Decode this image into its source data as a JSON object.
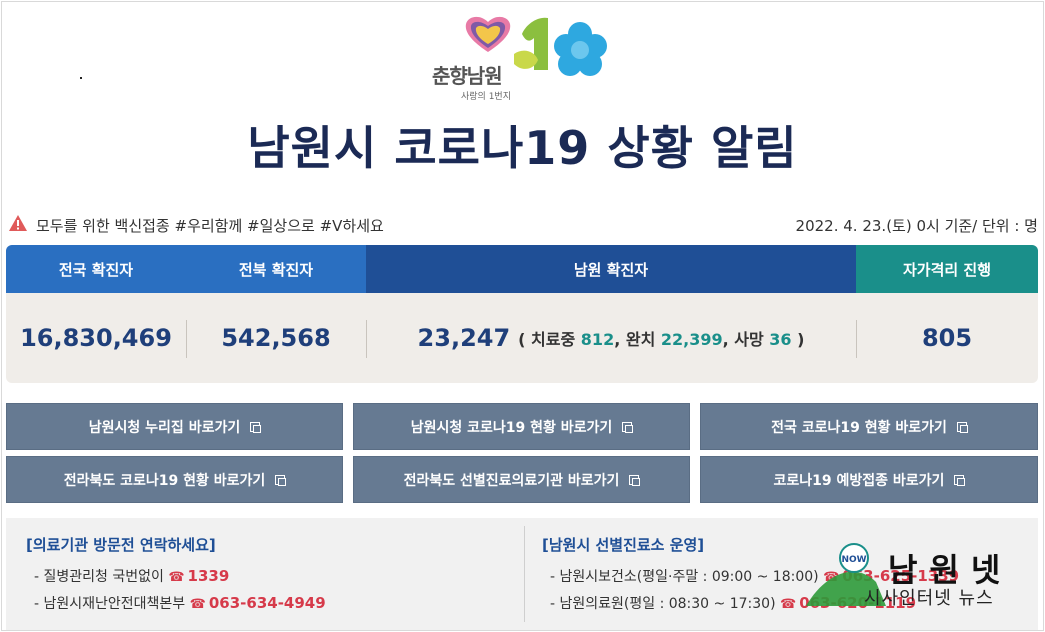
{
  "logo": {
    "text": "춘향남원",
    "subtext": "사랑의 1번지"
  },
  "title": "남원시 코로나19 상황 알림",
  "notice": {
    "icon": "warning-icon",
    "text": "모두를 위한 백신접종 #우리함께 #일상으로 #V하세요",
    "date": "2022. 4. 23.(토) 0시 기준/ 단위 : 명"
  },
  "stats": {
    "headers": [
      "전국 확진자",
      "전북 확진자",
      "남원 확진자",
      "자가격리 진행"
    ],
    "national": "16,830,469",
    "jeonbuk": "542,568",
    "namwon": "23,247",
    "treating_label": "( 치료중",
    "treating": "812",
    "recovered_label": ", 완치",
    "recovered": "22,399",
    "death_label": ", 사망",
    "death": "36",
    "close": " )",
    "quarantine": "805",
    "colors": {
      "header_blue": "#2a6fc1",
      "header_dark": "#1f4f96",
      "header_teal": "#1a8f8a",
      "value": "#1f3f7a"
    }
  },
  "links": [
    "남원시청 누리집 바로가기",
    "남원시청 코로나19 현황 바로가기",
    "전국 코로나19 현황 바로가기",
    "전라북도 코로나19 현황 바로가기",
    "전라북도 선별진료의료기관 바로가기",
    "코로나19 예방접종 바로가기"
  ],
  "info": {
    "left_title": "[의료기관 방문전 연락하세요]",
    "left_lines": [
      {
        "label": "- 질병관리청 국번없이",
        "phone": "1339"
      },
      {
        "label": "- 남원시재난안전대책본부",
        "phone": "063-634-4949"
      }
    ],
    "right_title": "[남원시 선별진료소 운영]",
    "right_lines": [
      {
        "label": "- 남원시보건소(평일·주말 : 09:00 ~ 18:00)",
        "phone": "063-625-1339"
      },
      {
        "label": "- 남원의료원(평일 : 08:30 ~ 17:30)",
        "phone": "063-620-1119"
      }
    ]
  },
  "watermark": {
    "name": "남원넷",
    "sub": "시사인터넷 뉴스",
    "badge": "NOW"
  }
}
